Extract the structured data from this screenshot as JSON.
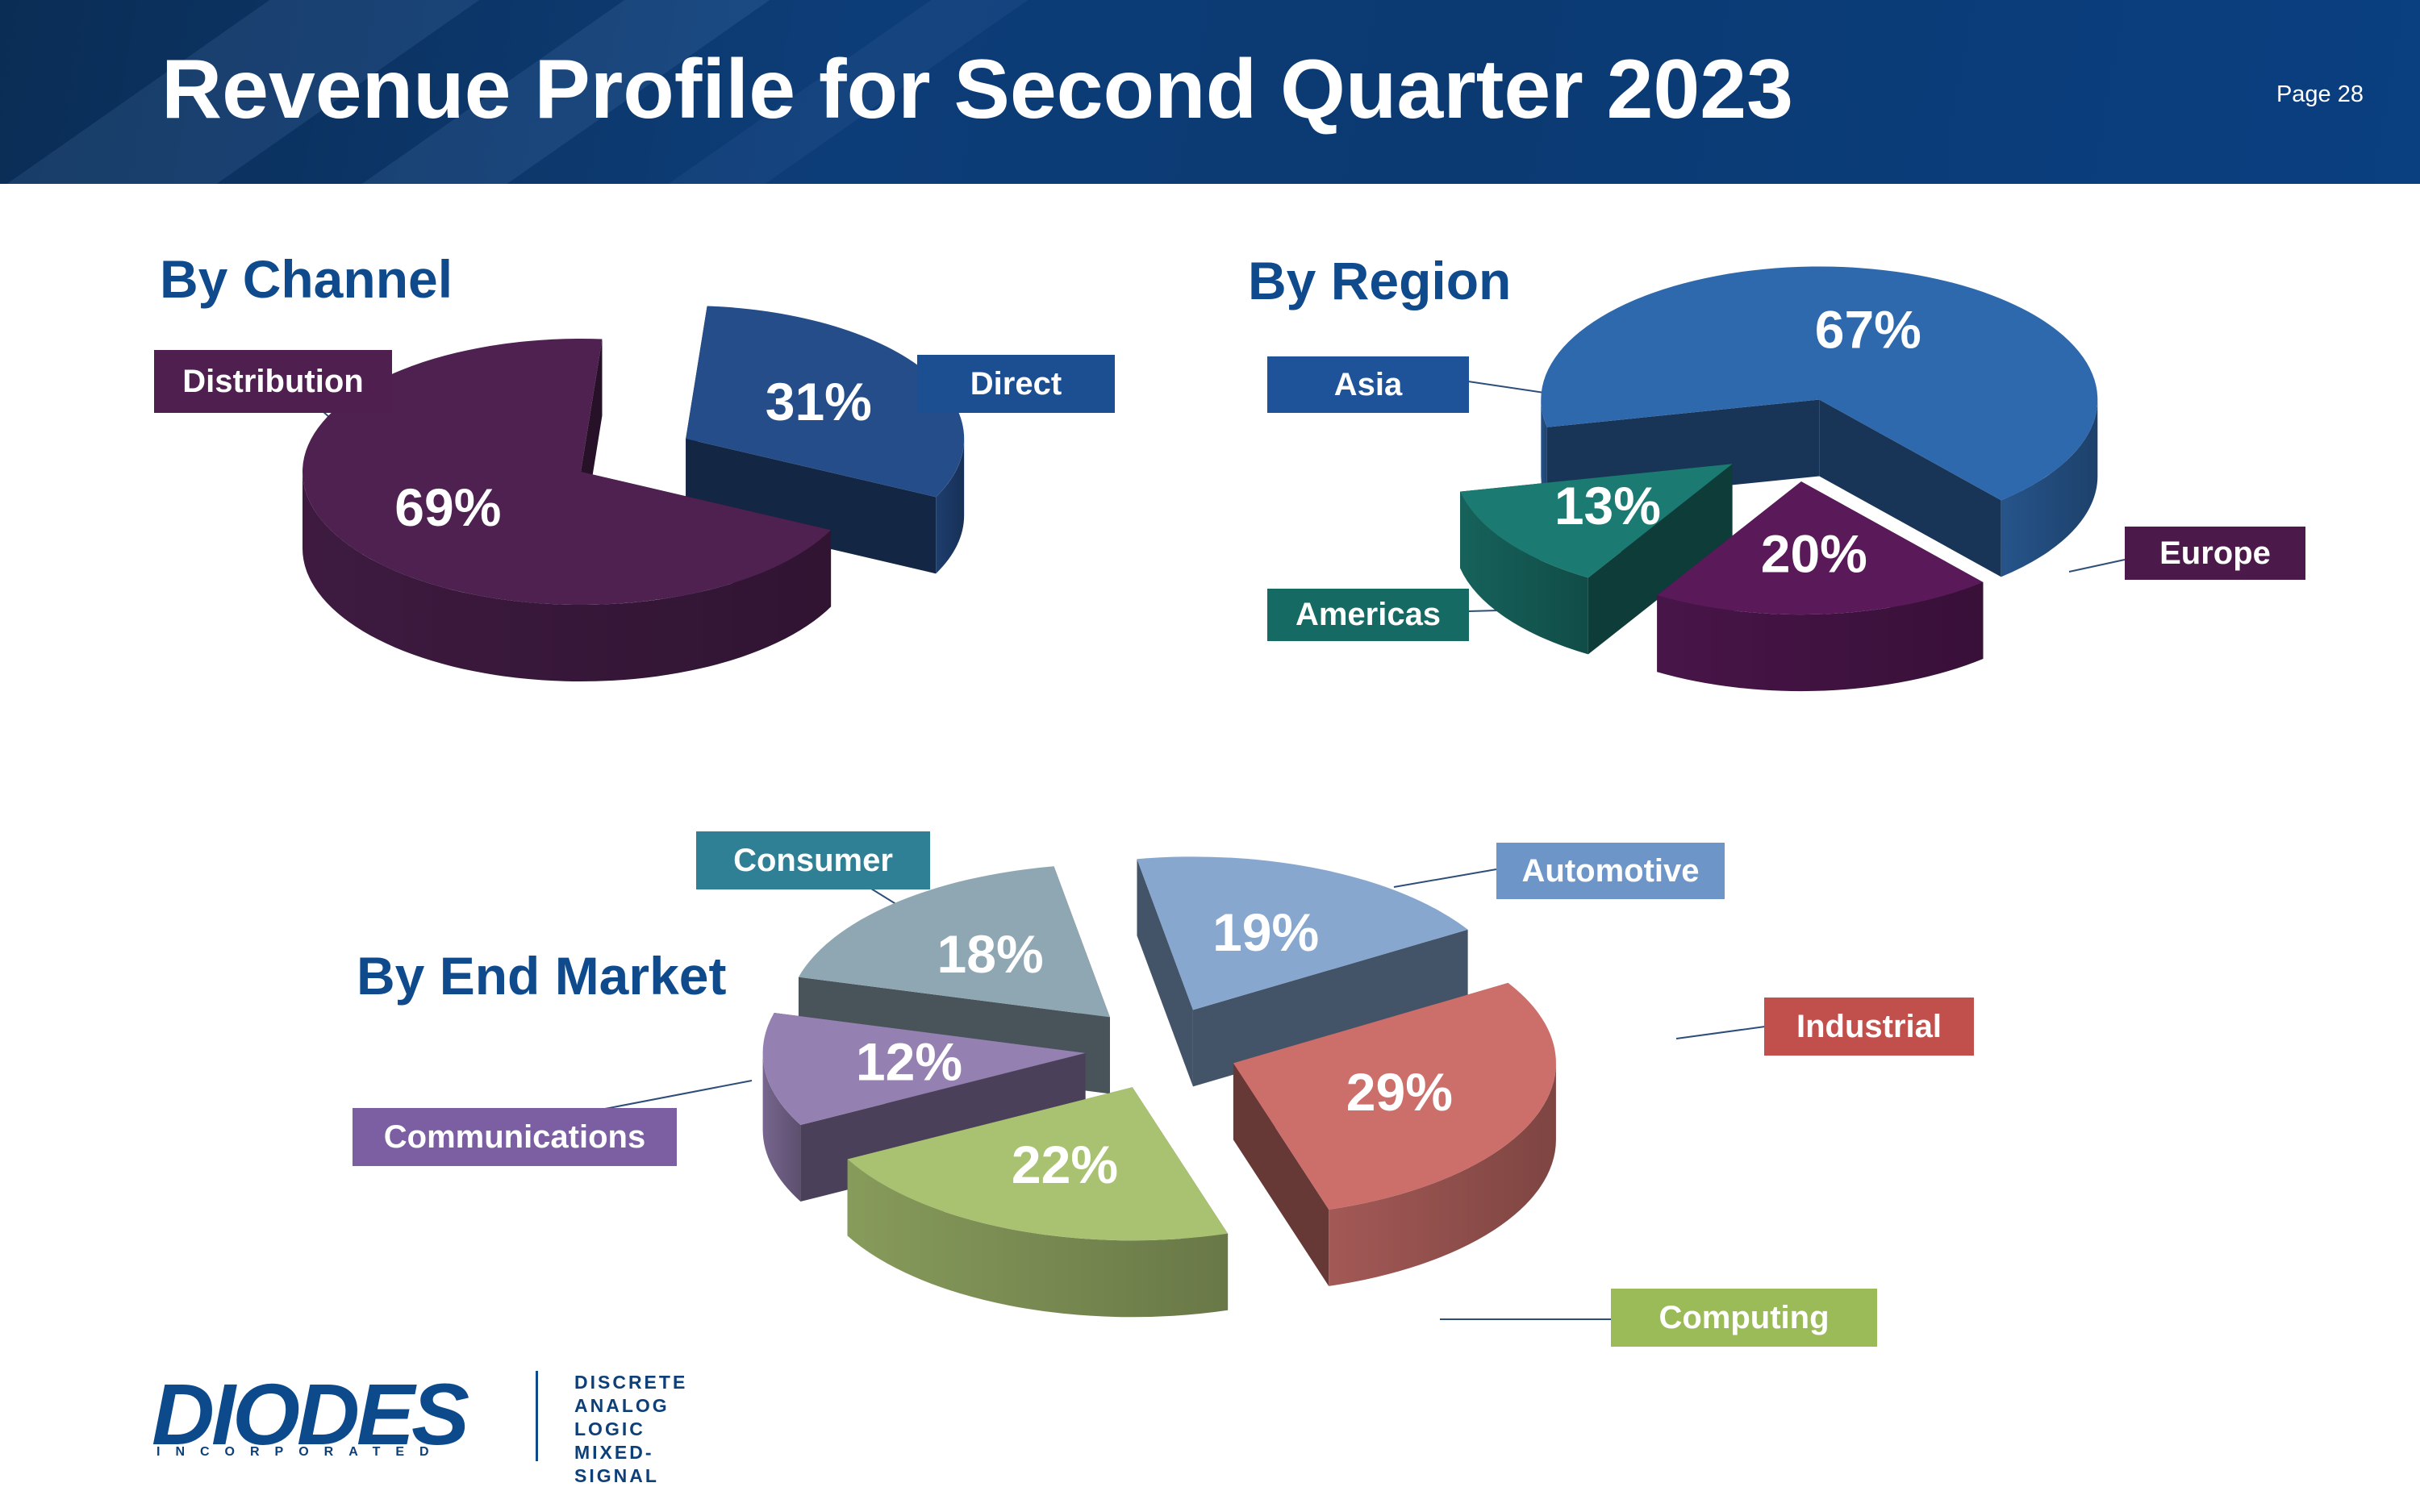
{
  "header": {
    "title": "Revenue Profile for Second Quarter 2023",
    "page": "Page 28"
  },
  "sections": {
    "channel": "By Channel",
    "region": "By Region",
    "market": "By End Market"
  },
  "chart_data": [
    {
      "type": "pie",
      "title": "By Channel",
      "labels": [
        "Distribution",
        "Direct"
      ],
      "values": [
        69,
        31
      ],
      "value_labels": [
        "69%",
        "31%"
      ],
      "colors": [
        "#4e2150",
        "#254d8a"
      ]
    },
    {
      "type": "pie",
      "title": "By Region",
      "labels": [
        "Asia",
        "Europe",
        "Americas"
      ],
      "values": [
        67,
        20,
        13
      ],
      "value_labels": [
        "67%",
        "20%",
        "13%"
      ],
      "colors": [
        "#2f69ad",
        "#5a1a5a",
        "#1b7a72"
      ]
    },
    {
      "type": "pie",
      "title": "By End Market",
      "labels": [
        "Automotive",
        "Industrial",
        "Computing",
        "Communications",
        "Consumer"
      ],
      "values": [
        19,
        29,
        22,
        12,
        18
      ],
      "value_labels": [
        "19%",
        "29%",
        "22%",
        "12%",
        "18%"
      ],
      "colors": [
        "#87a7cf",
        "#cc6f6b",
        "#a9c272",
        "#9580b2",
        "#8fa7b3"
      ]
    }
  ],
  "labels": {
    "distribution": "Distribution",
    "direct": "Direct",
    "asia": "Asia",
    "americas": "Americas",
    "europe": "Europe",
    "consumer": "Consumer",
    "automotive": "Automotive",
    "industrial": "Industrial",
    "communications": "Communications",
    "computing": "Computing"
  },
  "label_colors": {
    "distribution": "#4f1f4f",
    "direct": "#1c4e92",
    "asia": "#1e5299",
    "americas": "#156b63",
    "europe": "#4b1a4a",
    "consumer": "#2f7f95",
    "automotive": "#6d95c7",
    "industrial": "#c1504d",
    "communications": "#7c5fa3",
    "computing": "#9bbb59"
  },
  "logo": {
    "name": "DIODES",
    "sub": "INCORPORATED",
    "lines": [
      "DISCRETE",
      "ANALOG",
      "LOGIC",
      "MIXED-SIGNAL"
    ]
  }
}
